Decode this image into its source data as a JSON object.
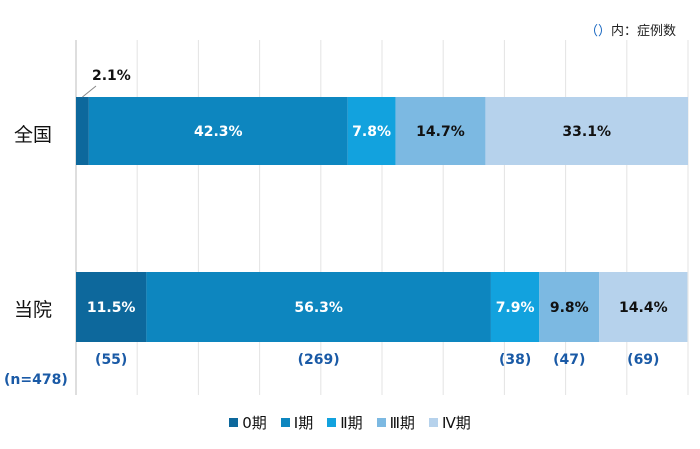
{
  "note": {
    "paren": "（）",
    "text": "内：症例数"
  },
  "n_label": "(n=478)",
  "colors": [
    "#0d689c",
    "#0d86bf",
    "#12a2de",
    "#7cb9e2",
    "#b6d2ec"
  ],
  "count_color": "#1a5aa6",
  "chart_data": {
    "type": "bar",
    "orientation": "horizontal",
    "stacked": true,
    "categories": [
      "全国",
      "当院"
    ],
    "series": [
      {
        "name": "0期",
        "values": [
          2.1,
          11.5
        ],
        "labels": [
          "2.1%",
          "11.5%"
        ],
        "counts": [
          null,
          "(55)"
        ]
      },
      {
        "name": "Ⅰ期",
        "values": [
          42.3,
          56.3
        ],
        "labels": [
          "42.3%",
          "56.3%"
        ],
        "counts": [
          null,
          "(269)"
        ]
      },
      {
        "name": "Ⅱ期",
        "values": [
          7.8,
          7.9
        ],
        "labels": [
          "7.8%",
          "7.9%"
        ],
        "counts": [
          null,
          "(38)"
        ]
      },
      {
        "name": "Ⅲ期",
        "values": [
          14.7,
          9.8
        ],
        "labels": [
          "14.7%",
          "9.8%"
        ],
        "counts": [
          null,
          "(47)"
        ]
      },
      {
        "name": "Ⅳ期",
        "values": [
          33.1,
          14.4
        ],
        "labels": [
          "33.1%",
          "14.4%"
        ],
        "counts": [
          null,
          "(69)"
        ]
      }
    ],
    "xlim": [
      0,
      100
    ],
    "grid": true,
    "legend": "bottom"
  }
}
